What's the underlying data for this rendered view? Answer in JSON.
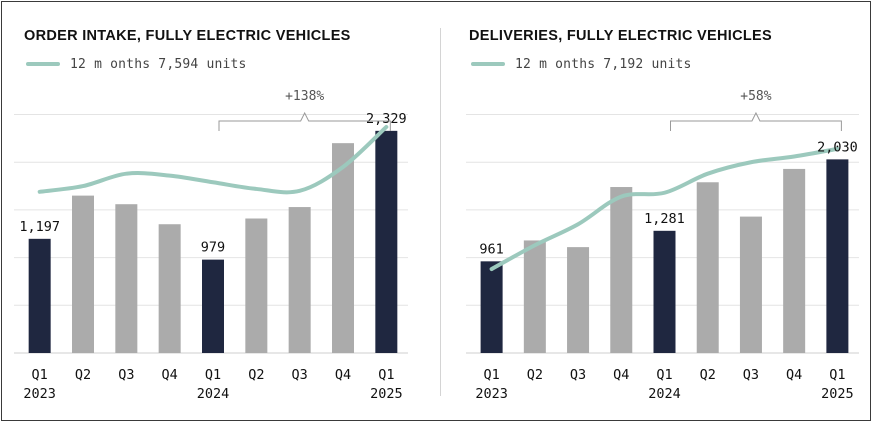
{
  "chart_data": [
    {
      "type": "bar",
      "title": "ORDER INTAKE, FULLY ELECTRIC VEHICLES",
      "legend": {
        "label": "12 m onths 7,594 units",
        "color": "#9cc9bd"
      },
      "categories": [
        "Q1",
        "Q2",
        "Q3",
        "Q4",
        "Q1",
        "Q2",
        "Q3",
        "Q4",
        "Q1"
      ],
      "year_labels": [
        "2023",
        "",
        "",
        "",
        "2024",
        "",
        "",
        "",
        "2025"
      ],
      "values": [
        1197,
        1650,
        1560,
        1350,
        979,
        1410,
        1530,
        2200,
        2329
      ],
      "highlight": [
        true,
        false,
        false,
        false,
        true,
        false,
        false,
        false,
        true
      ],
      "data_labels": [
        "1,197",
        "",
        "",
        "",
        "979",
        "",
        "",
        "",
        "2,329"
      ],
      "line_values": [
        1690,
        1750,
        1880,
        1860,
        1790,
        1720,
        1700,
        1950,
        2370
      ],
      "ylim": [
        0,
        2600
      ],
      "grid": true,
      "colors": {
        "highlight": "#1f2740",
        "normal": "#ababab",
        "line": "#9cc9bd",
        "grid": "#e4e4e4"
      },
      "annotation": {
        "label": "+138%",
        "from_index": 4,
        "to_index": 8
      }
    },
    {
      "type": "bar",
      "title": "DELIVERIES, FULLY ELECTRIC VEHICLES",
      "legend": {
        "label": "12 m onths 7,192 units",
        "color": "#9cc9bd"
      },
      "categories": [
        "Q1",
        "Q2",
        "Q3",
        "Q4",
        "Q1",
        "Q2",
        "Q3",
        "Q4",
        "Q1"
      ],
      "year_labels": [
        "2023",
        "",
        "",
        "",
        "2024",
        "",
        "",
        "",
        "2025"
      ],
      "values": [
        961,
        1180,
        1110,
        1740,
        1281,
        1790,
        1430,
        1930,
        2030
      ],
      "highlight": [
        true,
        false,
        false,
        false,
        true,
        false,
        false,
        false,
        true
      ],
      "data_labels": [
        "961",
        "",
        "",
        "",
        "1,281",
        "",
        "",
        "",
        "2,030"
      ],
      "line_values": [
        880,
        1130,
        1350,
        1640,
        1680,
        1880,
        2000,
        2060,
        2140
      ],
      "ylim": [
        0,
        2600
      ],
      "grid": true,
      "colors": {
        "highlight": "#1f2740",
        "normal": "#ababab",
        "line": "#9cc9bd",
        "grid": "#e4e4e4"
      },
      "annotation": {
        "label": "+58%",
        "from_index": 4,
        "to_index": 8
      }
    }
  ]
}
